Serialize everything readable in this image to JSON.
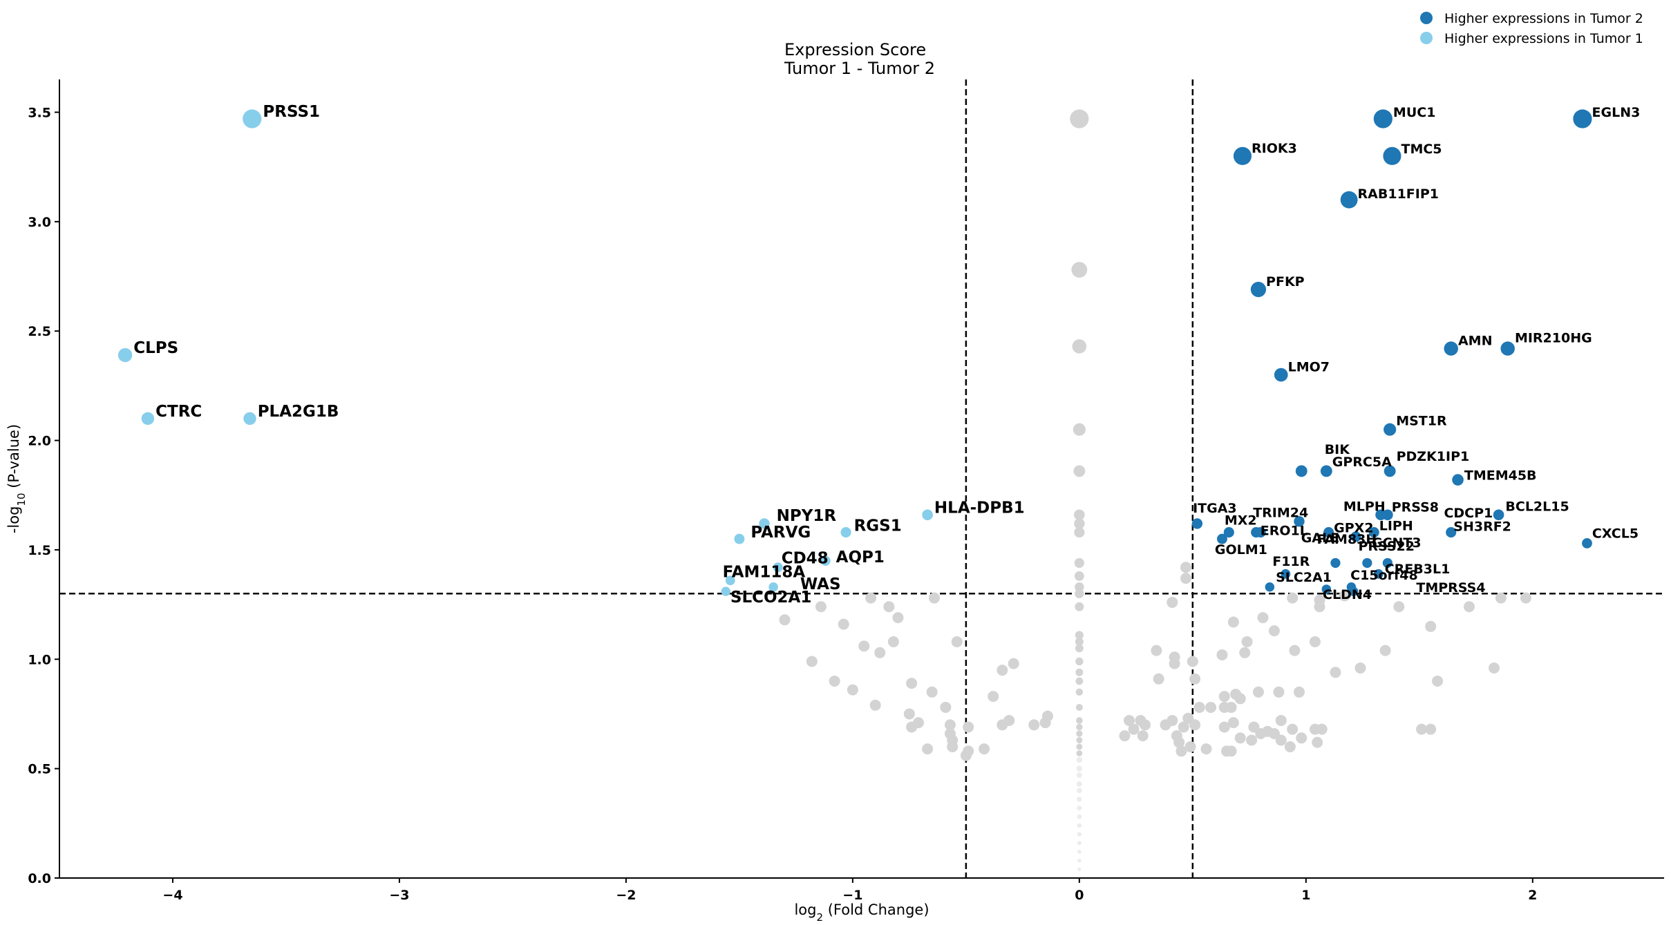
{
  "chart_data": {
    "type": "scatter",
    "title_lines": [
      "Expression Score",
      "Tumor 1 - Tumor 2"
    ],
    "xlabel": "log2 (Fold Change)",
    "ylabel": "-log10 (P-value)",
    "xlim": [
      -4.5,
      2.58
    ],
    "ylim": [
      0,
      3.65
    ],
    "x_ticks": [
      -4,
      -3,
      -2,
      -1,
      0,
      1,
      2
    ],
    "x_tick_labels": [
      "−4",
      "−3",
      "−2",
      "−1",
      "0",
      "1",
      "2"
    ],
    "y_ticks": [
      0.0,
      0.5,
      1.0,
      1.5,
      2.0,
      2.5,
      3.0,
      3.5
    ],
    "y_tick_labels": [
      "0.0",
      "0.5",
      "1.0",
      "1.5",
      "2.0",
      "2.5",
      "3.0",
      "3.5"
    ],
    "thresholds": {
      "fold_change": [
        -0.5,
        0.5
      ],
      "pvalue": 1.3
    },
    "grid": false,
    "legend_position": "top-right",
    "colors": {
      "tumor2": "#1f77b4",
      "tumor1": "#87ceeb",
      "nonsig": "#d3d3d3",
      "threshold": "#000000"
    },
    "legend": [
      {
        "label": "Higher expressions in Tumor 2",
        "series": "tumor2"
      },
      {
        "label": "Higher expressions in Tumor 1",
        "series": "tumor1"
      }
    ],
    "series": [
      {
        "name": "Higher expressions in Tumor 2",
        "key": "tumor2",
        "points": [
          {
            "gene": "EGLN3",
            "x": 2.22,
            "y": 3.47
          },
          {
            "gene": "MUC1",
            "x": 1.34,
            "y": 3.47
          },
          {
            "gene": "RIOK3",
            "x": 0.72,
            "y": 3.3
          },
          {
            "gene": "TMC5",
            "x": 1.38,
            "y": 3.3
          },
          {
            "gene": "RAB11FIP1",
            "x": 1.19,
            "y": 3.1
          },
          {
            "gene": "PFKP",
            "x": 0.79,
            "y": 2.69
          },
          {
            "gene": "AMN",
            "x": 1.64,
            "y": 2.42
          },
          {
            "gene": "MIR210HG",
            "x": 1.89,
            "y": 2.42
          },
          {
            "gene": "LMO7",
            "x": 0.89,
            "y": 2.3
          },
          {
            "gene": "MST1R",
            "x": 1.37,
            "y": 2.05
          },
          {
            "gene": "BIK",
            "x": 0.98,
            "y": 1.86
          },
          {
            "gene": "GPRC5A",
            "x": 1.09,
            "y": 1.86
          },
          {
            "gene": "PDZK1IP1",
            "x": 1.37,
            "y": 1.86
          },
          {
            "gene": "TMEM45B",
            "x": 1.67,
            "y": 1.82
          },
          {
            "gene": "GALE",
            "x": 0.97,
            "y": 1.63
          },
          {
            "gene": "MLPH",
            "x": 1.33,
            "y": 1.66
          },
          {
            "gene": "PRSS8",
            "x": 1.36,
            "y": 1.66
          },
          {
            "gene": "BCL2L15",
            "x": 1.85,
            "y": 1.66
          },
          {
            "gene": "ITGA3",
            "x": 0.52,
            "y": 1.62
          },
          {
            "gene": "MX2",
            "x": 0.66,
            "y": 1.58
          },
          {
            "gene": "TRIM24",
            "x": 0.78,
            "y": 1.58
          },
          {
            "gene": "ERO1L",
            "x": 0.8,
            "y": 1.58
          },
          {
            "gene": "GPX2",
            "x": 1.1,
            "y": 1.58
          },
          {
            "gene": "LIPH",
            "x": 1.3,
            "y": 1.58
          },
          {
            "gene": "CDCP1",
            "x": 1.22,
            "y": 1.56
          },
          {
            "gene": "SH3RF2",
            "x": 1.64,
            "y": 1.58
          },
          {
            "gene": "CXCL5",
            "x": 2.24,
            "y": 1.53
          },
          {
            "gene": "GOLM1",
            "x": 0.63,
            "y": 1.55
          },
          {
            "gene": "FAM83H",
            "x": 1.13,
            "y": 1.44
          },
          {
            "gene": "PRSS22",
            "x": 1.27,
            "y": 1.44
          },
          {
            "gene": "GCNT3",
            "x": 1.36,
            "y": 1.44
          },
          {
            "gene": "F11R",
            "x": 0.91,
            "y": 1.39
          },
          {
            "gene": "CREB3L1",
            "x": 1.32,
            "y": 1.39
          },
          {
            "gene": "SLC2A1",
            "x": 0.84,
            "y": 1.33
          },
          {
            "gene": "C15orf48",
            "x": 1.2,
            "y": 1.33
          },
          {
            "gene": "CLDN4",
            "x": 1.09,
            "y": 1.32
          },
          {
            "gene": "TMPRSS4",
            "x": 1.21,
            "y": 1.31
          }
        ]
      },
      {
        "name": "Higher expressions in Tumor 1",
        "key": "tumor1",
        "points": [
          {
            "gene": "PRSS1",
            "x": -3.65,
            "y": 3.47
          },
          {
            "gene": "CLPS",
            "x": -4.21,
            "y": 2.39
          },
          {
            "gene": "CTRC",
            "x": -4.11,
            "y": 2.1
          },
          {
            "gene": "PLA2G1B",
            "x": -3.66,
            "y": 2.1
          },
          {
            "gene": "HLA-DPB1",
            "x": -0.67,
            "y": 1.66
          },
          {
            "gene": "NPY1R",
            "x": -1.39,
            "y": 1.62
          },
          {
            "gene": "PARVG",
            "x": -1.5,
            "y": 1.55
          },
          {
            "gene": "RGS1",
            "x": -1.03,
            "y": 1.58
          },
          {
            "gene": "CD48",
            "x": -1.33,
            "y": 1.42
          },
          {
            "gene": "AQP1",
            "x": -1.12,
            "y": 1.45
          },
          {
            "gene": "FAM118A",
            "x": -1.54,
            "y": 1.36
          },
          {
            "gene": "WAS",
            "x": -1.35,
            "y": 1.33
          },
          {
            "gene": "SLCO2A1",
            "x": -1.56,
            "y": 1.31
          }
        ]
      },
      {
        "name": "",
        "key": "nonsig",
        "points": [
          {
            "x": 0,
            "y": 3.47
          },
          {
            "x": 0,
            "y": 2.78
          },
          {
            "x": 0,
            "y": 2.43
          },
          {
            "x": 0,
            "y": 2.05
          },
          {
            "x": 0,
            "y": 1.86
          },
          {
            "x": 0,
            "y": 1.66
          },
          {
            "x": 0,
            "y": 1.62
          },
          {
            "x": 0,
            "y": 1.58
          },
          {
            "x": 0,
            "y": 1.44
          },
          {
            "x": 0,
            "y": 1.38
          },
          {
            "x": 0,
            "y": 1.33
          },
          {
            "x": 0,
            "y": 1.3
          },
          {
            "x": 0,
            "y": 1.24
          },
          {
            "x": 0,
            "y": 1.11
          },
          {
            "x": 0,
            "y": 1.08
          },
          {
            "x": 0,
            "y": 1.05
          },
          {
            "x": 0,
            "y": 0.99
          },
          {
            "x": 0,
            "y": 0.94
          },
          {
            "x": 0,
            "y": 0.9
          },
          {
            "x": 0,
            "y": 0.85
          },
          {
            "x": 0,
            "y": 0.78
          },
          {
            "x": 0,
            "y": 0.72
          },
          {
            "x": 0,
            "y": 0.69
          },
          {
            "x": 0,
            "y": 0.66
          },
          {
            "x": 0,
            "y": 0.63
          },
          {
            "x": 0,
            "y": 0.6
          },
          {
            "x": 0,
            "y": 0.57
          },
          {
            "x": 0,
            "y": 0.54
          },
          {
            "x": 0,
            "y": 0.5
          },
          {
            "x": 0,
            "y": 0.47
          },
          {
            "x": 0,
            "y": 0.43
          },
          {
            "x": 0,
            "y": 0.4
          },
          {
            "x": 0,
            "y": 0.36
          },
          {
            "x": 0,
            "y": 0.32
          },
          {
            "x": 0,
            "y": 0.28
          },
          {
            "x": 0,
            "y": 0.24
          },
          {
            "x": 0,
            "y": 0.2
          },
          {
            "x": 0,
            "y": 0.16
          },
          {
            "x": 0,
            "y": 0.12
          },
          {
            "x": 0,
            "y": 0.08
          },
          {
            "x": 0,
            "y": 0.04
          },
          {
            "x": -1.3,
            "y": 1.18
          },
          {
            "x": -1.14,
            "y": 1.24
          },
          {
            "x": -1.04,
            "y": 1.16
          },
          {
            "x": -0.92,
            "y": 1.28
          },
          {
            "x": -0.84,
            "y": 1.24
          },
          {
            "x": -0.8,
            "y": 1.19
          },
          {
            "x": -0.64,
            "y": 1.28
          },
          {
            "x": -0.95,
            "y": 1.06
          },
          {
            "x": -0.88,
            "y": 1.03
          },
          {
            "x": -0.82,
            "y": 1.08
          },
          {
            "x": -0.54,
            "y": 1.08
          },
          {
            "x": -1.18,
            "y": 0.99
          },
          {
            "x": -1.08,
            "y": 0.9
          },
          {
            "x": -1.0,
            "y": 0.86
          },
          {
            "x": -0.9,
            "y": 0.79
          },
          {
            "x": -0.74,
            "y": 0.89
          },
          {
            "x": -0.65,
            "y": 0.85
          },
          {
            "x": -0.59,
            "y": 0.78
          },
          {
            "x": -0.75,
            "y": 0.75
          },
          {
            "x": -0.71,
            "y": 0.71
          },
          {
            "x": -0.74,
            "y": 0.69
          },
          {
            "x": -0.57,
            "y": 0.7
          },
          {
            "x": -0.57,
            "y": 0.66
          },
          {
            "x": -0.56,
            "y": 0.63
          },
          {
            "x": -0.56,
            "y": 0.6
          },
          {
            "x": -0.49,
            "y": 0.69
          },
          {
            "x": -0.49,
            "y": 0.58
          },
          {
            "x": -0.5,
            "y": 0.56
          },
          {
            "x": -0.42,
            "y": 0.59
          },
          {
            "x": -0.67,
            "y": 0.59
          },
          {
            "x": -0.38,
            "y": 0.83
          },
          {
            "x": -0.34,
            "y": 0.95
          },
          {
            "x": -0.29,
            "y": 0.98
          },
          {
            "x": -0.31,
            "y": 0.72
          },
          {
            "x": -0.34,
            "y": 0.7
          },
          {
            "x": -0.2,
            "y": 0.7
          },
          {
            "x": -0.14,
            "y": 0.74
          },
          {
            "x": -0.15,
            "y": 0.71
          },
          {
            "x": 0.2,
            "y": 0.65
          },
          {
            "x": 0.22,
            "y": 0.72
          },
          {
            "x": 0.24,
            "y": 0.68
          },
          {
            "x": 0.27,
            "y": 0.72
          },
          {
            "x": 0.28,
            "y": 0.65
          },
          {
            "x": 0.29,
            "y": 0.7
          },
          {
            "x": 0.34,
            "y": 1.04
          },
          {
            "x": 0.35,
            "y": 0.91
          },
          {
            "x": 0.38,
            "y": 0.7
          },
          {
            "x": 0.41,
            "y": 1.26
          },
          {
            "x": 0.41,
            "y": 0.72
          },
          {
            "x": 0.42,
            "y": 1.01
          },
          {
            "x": 0.42,
            "y": 0.98
          },
          {
            "x": 0.43,
            "y": 0.65
          },
          {
            "x": 0.44,
            "y": 0.62
          },
          {
            "x": 0.45,
            "y": 0.58
          },
          {
            "x": 0.46,
            "y": 0.69
          },
          {
            "x": 0.47,
            "y": 1.42
          },
          {
            "x": 0.47,
            "y": 1.37
          },
          {
            "x": 0.48,
            "y": 0.73
          },
          {
            "x": 0.49,
            "y": 0.6
          },
          {
            "x": 0.5,
            "y": 0.99
          },
          {
            "x": 0.51,
            "y": 0.91
          },
          {
            "x": 0.51,
            "y": 0.7
          },
          {
            "x": 0.53,
            "y": 0.78
          },
          {
            "x": 0.56,
            "y": 0.59
          },
          {
            "x": 0.58,
            "y": 0.78
          },
          {
            "x": 0.63,
            "y": 1.02
          },
          {
            "x": 0.64,
            "y": 0.83
          },
          {
            "x": 0.64,
            "y": 0.78
          },
          {
            "x": 0.64,
            "y": 0.69
          },
          {
            "x": 0.65,
            "y": 0.58
          },
          {
            "x": 0.67,
            "y": 0.78
          },
          {
            "x": 0.67,
            "y": 0.58
          },
          {
            "x": 0.68,
            "y": 1.17
          },
          {
            "x": 0.68,
            "y": 0.71
          },
          {
            "x": 0.69,
            "y": 0.84
          },
          {
            "x": 0.71,
            "y": 0.82
          },
          {
            "x": 0.71,
            "y": 0.64
          },
          {
            "x": 0.73,
            "y": 1.03
          },
          {
            "x": 0.74,
            "y": 1.08
          },
          {
            "x": 0.76,
            "y": 0.63
          },
          {
            "x": 0.77,
            "y": 0.69
          },
          {
            "x": 0.79,
            "y": 0.85
          },
          {
            "x": 0.8,
            "y": 0.66
          },
          {
            "x": 0.81,
            "y": 1.19
          },
          {
            "x": 0.83,
            "y": 0.67
          },
          {
            "x": 0.86,
            "y": 1.13
          },
          {
            "x": 0.86,
            "y": 0.66
          },
          {
            "x": 0.88,
            "y": 0.85
          },
          {
            "x": 0.89,
            "y": 0.72
          },
          {
            "x": 0.89,
            "y": 0.63
          },
          {
            "x": 0.93,
            "y": 0.6
          },
          {
            "x": 0.94,
            "y": 1.28
          },
          {
            "x": 0.94,
            "y": 0.68
          },
          {
            "x": 0.95,
            "y": 1.04
          },
          {
            "x": 0.97,
            "y": 0.85
          },
          {
            "x": 0.98,
            "y": 0.64
          },
          {
            "x": 1.04,
            "y": 1.08
          },
          {
            "x": 1.04,
            "y": 0.68
          },
          {
            "x": 1.05,
            "y": 0.62
          },
          {
            "x": 1.06,
            "y": 1.27
          },
          {
            "x": 1.06,
            "y": 1.24
          },
          {
            "x": 1.07,
            "y": 0.68
          },
          {
            "x": 1.13,
            "y": 0.94
          },
          {
            "x": 1.17,
            "y": 1.29
          },
          {
            "x": 1.24,
            "y": 0.96
          },
          {
            "x": 1.35,
            "y": 1.04
          },
          {
            "x": 1.41,
            "y": 1.24
          },
          {
            "x": 1.51,
            "y": 0.68
          },
          {
            "x": 1.55,
            "y": 0.68
          },
          {
            "x": 1.55,
            "y": 1.15
          },
          {
            "x": 1.58,
            "y": 0.9
          },
          {
            "x": 1.72,
            "y": 1.24
          },
          {
            "x": 1.83,
            "y": 0.96
          },
          {
            "x": 1.86,
            "y": 1.28
          },
          {
            "x": 1.97,
            "y": 1.28
          }
        ]
      }
    ]
  }
}
